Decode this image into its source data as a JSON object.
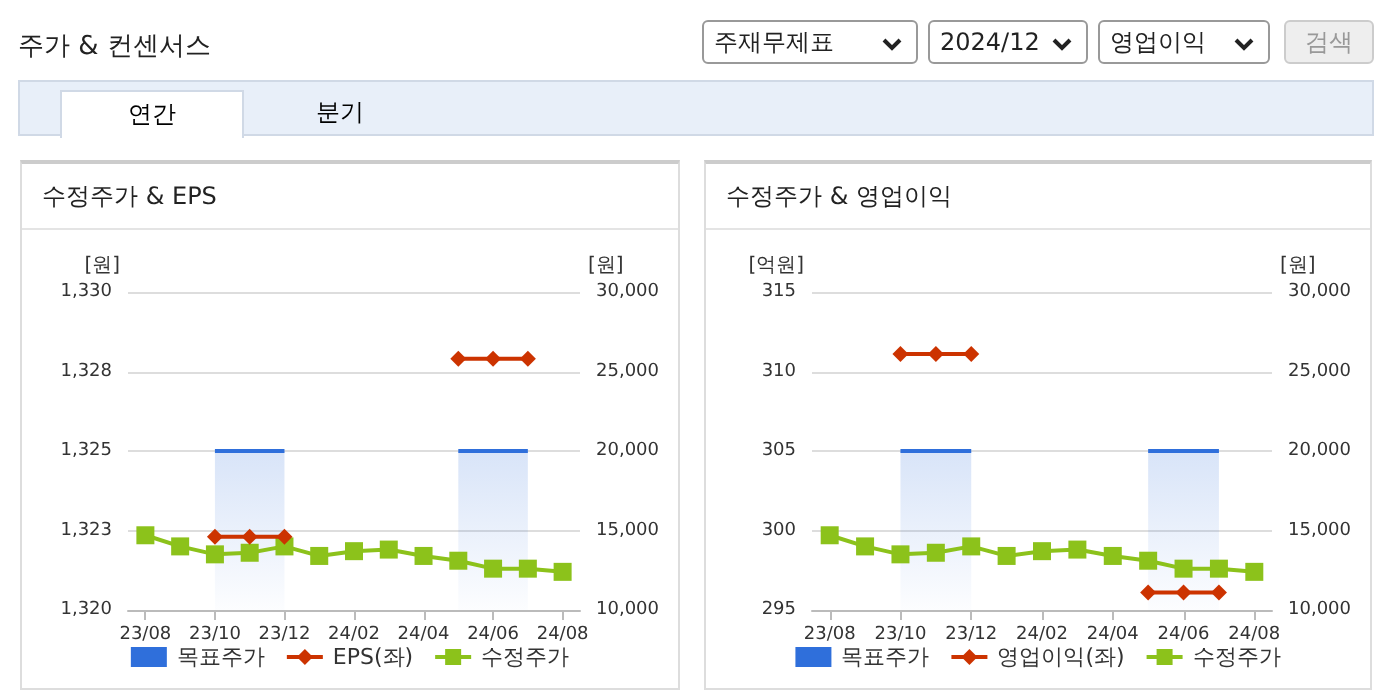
{
  "chart_data": [
    {
      "type": "other",
      "annotations": [
        "주가 & 컨센서스",
        "주재무제표",
        "2024/12",
        "영업이익",
        "검색",
        "연간",
        "분기"
      ]
    },
    {
      "type": "line",
      "title": "수정주가 & EPS",
      "ylabel": "[원]",
      "y2label": "[원]",
      "categories": [
        "23/08",
        null,
        "23/10",
        null,
        "23/12",
        null,
        "24/02",
        null,
        "24/04",
        null,
        "24/06",
        null,
        "24/08"
      ],
      "series": [
        {
          "name": "목표주가",
          "type": "area",
          "axis": "y2",
          "color": "#2f6fdb",
          "marker": "none",
          "values": [
            null,
            null,
            20000,
            20000,
            20000,
            null,
            null,
            null,
            null,
            20000,
            20000,
            20000,
            null
          ]
        },
        {
          "name": "EPS(좌)",
          "color": "#cc3300",
          "marker": "diamond",
          "values": [
            null,
            null,
            1322.3,
            1322.3,
            1322.3,
            null,
            null,
            null,
            null,
            1327.9,
            1327.9,
            1327.9,
            null
          ]
        },
        {
          "name": "수정주가",
          "axis": "y2",
          "color": "#8cc21b",
          "marker": "square",
          "values": [
            14700,
            14000,
            13500,
            13600,
            14000,
            13400,
            13700,
            13800,
            13400,
            13100,
            12600,
            12600,
            12400
          ]
        }
      ],
      "ylim": [
        1320,
        1330
      ],
      "yticks": [
        {
          "value": 1320,
          "label": "1,320"
        },
        {
          "value": 1322.5,
          "label": "1,323"
        },
        {
          "value": 1325,
          "label": "1,325"
        },
        {
          "value": 1327.5,
          "label": "1,328"
        },
        {
          "value": 1330,
          "label": "1,330"
        }
      ],
      "y2lim": [
        10000,
        30000
      ],
      "y2ticks": [
        {
          "value": 10000,
          "label": "10,000"
        },
        {
          "value": 15000,
          "label": "15,000"
        },
        {
          "value": 20000,
          "label": "20,000"
        },
        {
          "value": 25000,
          "label": "25,000"
        },
        {
          "value": 30000,
          "label": "30,000"
        }
      ],
      "grid": "y",
      "legend": "bottom"
    },
    {
      "type": "line",
      "title": "수정주가 & 영업이익",
      "ylabel": "[억원]",
      "y2label": "[원]",
      "categories": [
        "23/08",
        null,
        "23/10",
        null,
        "23/12",
        null,
        "24/02",
        null,
        "24/04",
        null,
        "24/06",
        null,
        "24/08"
      ],
      "series": [
        {
          "name": "목표주가",
          "type": "area",
          "axis": "y2",
          "color": "#2f6fdb",
          "marker": "none",
          "values": [
            null,
            null,
            20000,
            20000,
            20000,
            null,
            null,
            null,
            null,
            20000,
            20000,
            20000,
            null
          ]
        },
        {
          "name": "영업이익(좌)",
          "color": "#cc3300",
          "marker": "diamond",
          "values": [
            null,
            null,
            311.1,
            311.1,
            311.1,
            null,
            null,
            null,
            null,
            296.1,
            296.1,
            296.1,
            null
          ]
        },
        {
          "name": "수정주가",
          "axis": "y2",
          "color": "#8cc21b",
          "marker": "square",
          "values": [
            14700,
            14000,
            13500,
            13600,
            14000,
            13400,
            13700,
            13800,
            13400,
            13100,
            12600,
            12600,
            12400
          ]
        }
      ],
      "ylim": [
        295,
        315
      ],
      "yticks": [
        295,
        300,
        305,
        310,
        315
      ],
      "y2lim": [
        10000,
        30000
      ],
      "y2ticks": [
        {
          "value": 10000,
          "label": "10,000"
        },
        {
          "value": 15000,
          "label": "15,000"
        },
        {
          "value": 20000,
          "label": "20,000"
        },
        {
          "value": 25000,
          "label": "25,000"
        },
        {
          "value": 30000,
          "label": "30,000"
        }
      ],
      "grid": "y",
      "legend": "bottom"
    }
  ]
}
